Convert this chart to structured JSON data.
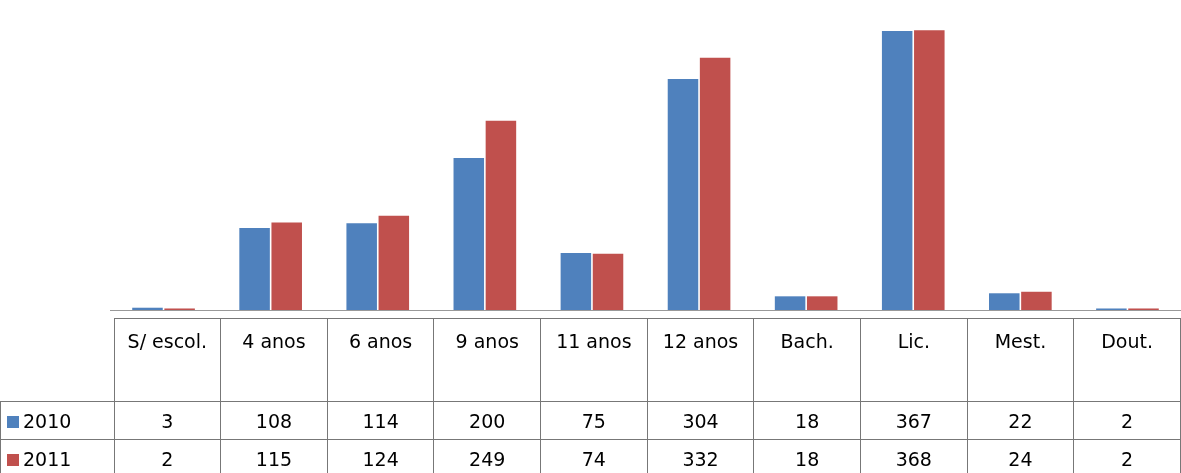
{
  "chart_data": {
    "type": "bar",
    "categories": [
      "S/ escol.",
      "4 anos",
      "6 anos",
      "9 anos",
      "11 anos",
      "12 anos",
      "Bach.",
      "Lic.",
      "Mest.",
      "Dout."
    ],
    "series": [
      {
        "name": "2010",
        "color": "#4f81bd",
        "values": [
          3,
          108,
          114,
          200,
          75,
          304,
          18,
          367,
          22,
          2
        ]
      },
      {
        "name": "2011",
        "color": "#c0504d",
        "values": [
          2,
          115,
          124,
          249,
          74,
          332,
          18,
          368,
          24,
          2
        ]
      }
    ],
    "data_labels": true,
    "legend": "bottom left"
  }
}
